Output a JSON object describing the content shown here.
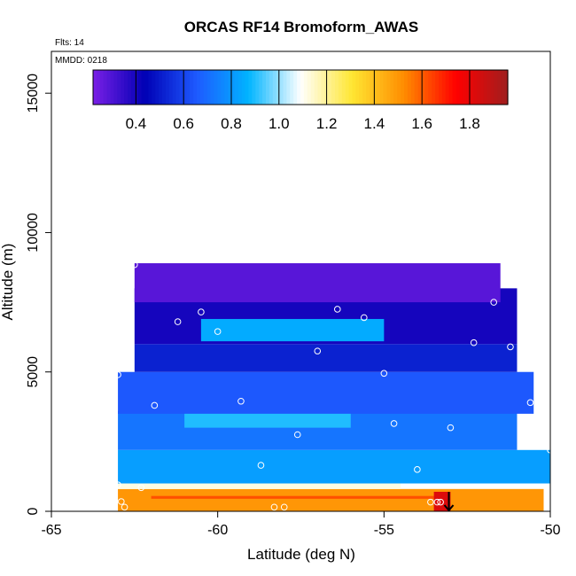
{
  "chart_data": {
    "type": "heatmap",
    "title": "ORCAS RF14 Bromoform_AWAS",
    "flights_label": "Flts: 14",
    "date_label": "MMDD: 0218",
    "xlabel": "Latitude (deg N)",
    "ylabel": "Altitude (m)",
    "xlim": [
      -65,
      -50
    ],
    "ylim": [
      0,
      16500
    ],
    "x_ticks": [
      -65,
      -60,
      -55,
      -50
    ],
    "x_tick_labels": [
      "-65",
      "-60",
      "-55",
      "-50"
    ],
    "y_ticks": [
      0,
      5000,
      10000,
      15000
    ],
    "y_tick_labels": [
      "0",
      "5000",
      "10000",
      "15000"
    ],
    "colorbar": {
      "min": 0.22,
      "max": 1.96,
      "ticks": [
        0.4,
        0.6,
        0.8,
        1.0,
        1.2,
        1.4,
        1.6,
        1.8
      ],
      "tick_labels": [
        "0.4",
        "0.6",
        "0.8",
        "1.0",
        "1.2",
        "1.4",
        "1.6",
        "1.8"
      ],
      "colors": [
        "#7a1fe6",
        "#0000b4",
        "#1e5aff",
        "#00b4ff",
        "#ffffff",
        "#ffe632",
        "#ff8c00",
        "#ff0000",
        "#a01e1e"
      ]
    },
    "field_regions": [
      {
        "lat": [
          -63.0,
          -50.2
        ],
        "alt": [
          0,
          800
        ],
        "value": 1.5
      },
      {
        "lat": [
          -62.0,
          -53.5
        ],
        "alt": [
          450,
          550
        ],
        "value": 1.62
      },
      {
        "lat": [
          -53.5,
          -53.0
        ],
        "alt": [
          0,
          700
        ],
        "value": 1.82
      },
      {
        "lat": [
          -63.0,
          -54.5
        ],
        "alt": [
          800,
          1100
        ],
        "value": 1.12
      },
      {
        "lat": [
          -63.0,
          -50.0
        ],
        "alt": [
          1000,
          2200
        ],
        "value": 0.82
      },
      {
        "lat": [
          -63.0,
          -51.0
        ],
        "alt": [
          2200,
          3600
        ],
        "value": 0.72
      },
      {
        "lat": [
          -63.0,
          -50.5
        ],
        "alt": [
          3500,
          5000
        ],
        "value": 0.65
      },
      {
        "lat": [
          -62.5,
          -51.0
        ],
        "alt": [
          5000,
          6000
        ],
        "value": 0.52
      },
      {
        "lat": [
          -62.5,
          -51.0
        ],
        "alt": [
          6000,
          8000
        ],
        "value": 0.4
      },
      {
        "lat": [
          -62.5,
          -51.5
        ],
        "alt": [
          7500,
          8900
        ],
        "value": 0.28
      },
      {
        "lat": [
          -60.5,
          -55.0
        ],
        "alt": [
          6100,
          6900
        ],
        "value": 0.85
      },
      {
        "lat": [
          -61.0,
          -56.0
        ],
        "alt": [
          3000,
          3500
        ],
        "value": 0.9
      }
    ],
    "sample_points": [
      {
        "lat": -62.5,
        "alt": 8850
      },
      {
        "lat": -60.5,
        "alt": 7150
      },
      {
        "lat": -61.2,
        "alt": 6800
      },
      {
        "lat": -60.0,
        "alt": 6450
      },
      {
        "lat": -56.4,
        "alt": 7250
      },
      {
        "lat": -55.6,
        "alt": 6950
      },
      {
        "lat": -51.7,
        "alt": 7500
      },
      {
        "lat": -52.3,
        "alt": 6050
      },
      {
        "lat": -51.2,
        "alt": 5900
      },
      {
        "lat": -57.0,
        "alt": 5750
      },
      {
        "lat": -55.0,
        "alt": 4950
      },
      {
        "lat": -63.0,
        "alt": 4900
      },
      {
        "lat": -61.9,
        "alt": 3800
      },
      {
        "lat": -59.3,
        "alt": 3950
      },
      {
        "lat": -54.7,
        "alt": 3150
      },
      {
        "lat": -53.0,
        "alt": 3000
      },
      {
        "lat": -50.6,
        "alt": 3900
      },
      {
        "lat": -57.6,
        "alt": 2750
      },
      {
        "lat": -58.7,
        "alt": 1650
      },
      {
        "lat": -54.0,
        "alt": 1500
      },
      {
        "lat": -50.0,
        "alt": 2200
      },
      {
        "lat": -63.0,
        "alt": 950
      },
      {
        "lat": -62.3,
        "alt": 850
      },
      {
        "lat": -62.9,
        "alt": 350
      },
      {
        "lat": -62.8,
        "alt": 150
      },
      {
        "lat": -58.3,
        "alt": 150
      },
      {
        "lat": -58.0,
        "alt": 150
      },
      {
        "lat": -53.6,
        "alt": 330
      },
      {
        "lat": -53.4,
        "alt": 330
      },
      {
        "lat": -53.3,
        "alt": 330
      }
    ],
    "marker_arrow": {
      "lat": -53.05,
      "alt": 0
    }
  }
}
